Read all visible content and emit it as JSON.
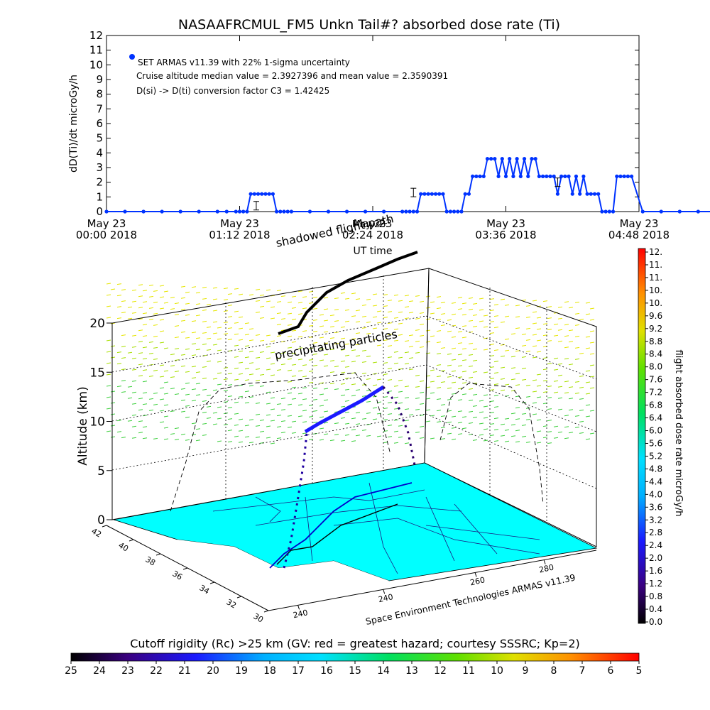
{
  "colors": {
    "dose_marker": "#0033ff",
    "map_fill": "#00ffff",
    "ground_track": "#0000cc",
    "flight_path_3d": "#000000",
    "dashed_curtain": "#000000",
    "background": "#ffffff"
  },
  "chart_data": [
    {
      "type": "scatter",
      "title": "NASAAFRCMUL_FM5 Unkn Tail#? absorbed dose rate (Ti)",
      "xlabel": "UT time",
      "ylabel": "dD(Ti)/dt microGy/h",
      "ylim": [
        0,
        12
      ],
      "yticks": [
        0,
        1,
        2,
        3,
        4,
        5,
        6,
        7,
        8,
        9,
        10,
        11,
        12
      ],
      "xlim": [
        "00:00",
        "04:48"
      ],
      "xtick_labels": [
        {
          "top": "May 23",
          "bottom": "00:00 2018"
        },
        {
          "top": "May 23",
          "bottom": "01:12 2018"
        },
        {
          "top": "May 23",
          "bottom": "02:24 2018"
        },
        {
          "top": "May 23",
          "bottom": "03:36 2018"
        },
        {
          "top": "May 23",
          "bottom": "04:48 2018"
        }
      ],
      "legend": {
        "placement": "top-left",
        "lines": [
          "SET ARMAS v11.39 with 22% 1-sigma uncertainty",
          "Cruise altitude median value = 2.3927396 and mean value = 2.3590391",
          "D(si) -> D(ti) conversion factor C3 = 1.42425"
        ]
      },
      "series": [
        {
          "x_minutes": [
            0,
            10,
            20,
            30,
            40,
            50,
            60,
            65,
            70,
            72,
            74,
            76,
            78,
            80,
            82,
            84,
            86,
            88,
            90,
            92,
            94,
            96,
            98,
            100,
            110,
            120,
            130,
            140,
            150,
            160,
            162,
            164,
            166,
            168,
            170,
            172,
            174,
            176,
            178,
            180,
            182,
            184,
            186,
            188,
            190,
            192,
            194,
            196,
            198,
            200,
            202,
            204,
            206,
            208,
            210,
            212,
            214,
            216,
            218,
            220,
            222,
            224,
            226,
            228,
            230,
            232,
            234,
            236,
            238,
            240,
            242,
            244,
            246,
            248,
            250,
            252,
            254,
            256,
            258,
            260,
            262,
            264,
            266,
            268,
            270,
            272,
            274,
            276,
            278,
            280,
            282,
            284,
            290,
            300,
            310,
            320,
            330
          ],
          "values": [
            0,
            0,
            0,
            0,
            0,
            0,
            0,
            0,
            0,
            0,
            0,
            0,
            1.2,
            1.2,
            1.2,
            1.2,
            1.2,
            1.2,
            1.2,
            0,
            0,
            0,
            0,
            0,
            0,
            0,
            0,
            0,
            0,
            0,
            0,
            0,
            0,
            0,
            1.2,
            1.2,
            1.2,
            1.2,
            1.2,
            1.2,
            1.2,
            0,
            0,
            0,
            0,
            0,
            1.2,
            1.2,
            2.4,
            2.4,
            2.4,
            2.4,
            3.6,
            3.6,
            3.6,
            2.4,
            3.6,
            2.4,
            3.6,
            2.4,
            3.6,
            2.4,
            3.6,
            2.4,
            3.6,
            3.6,
            2.4,
            2.4,
            2.4,
            2.4,
            2.4,
            1.2,
            2.4,
            2.4,
            2.4,
            1.2,
            2.4,
            1.2,
            2.4,
            1.2,
            1.2,
            1.2,
            1.2,
            0,
            0,
            0,
            0,
            2.4,
            2.4,
            2.4,
            2.4,
            2.4,
            0,
            0,
            0,
            0,
            0
          ]
        }
      ],
      "error_bars": [
        {
          "x_minutes": 81,
          "value": 0.4
        },
        {
          "x_minutes": 166,
          "value": 1.3
        },
        {
          "x_minutes": 244,
          "value": 2.0
        }
      ]
    },
    {
      "type": "scatter",
      "subtype": "3d-surface-trajectory",
      "ylabel": "Altitude (km)",
      "zlim": [
        0,
        20
      ],
      "zticks": [
        0,
        5,
        10,
        15,
        20
      ],
      "latitude_ticks": [
        42,
        40,
        38,
        36,
        34,
        32,
        30
      ],
      "longitude_ticks": [
        240,
        240,
        260,
        280
      ],
      "colorbar_label": "flight absorbed dose rate microGy/h",
      "colorbar_ticks": [
        "12.",
        "11.",
        "11.",
        "10.",
        "10.",
        "9.6",
        "9.2",
        "8.8",
        "8.4",
        "8.0",
        "7.6",
        "7.2",
        "6.8",
        "6.4",
        "6.0",
        "5.6",
        "5.2",
        "4.8",
        "4.4",
        "4.0",
        "3.6",
        "3.2",
        "2.8",
        "2.4",
        "2.0",
        "1.6",
        "1.2",
        "0.8",
        "0.4",
        "0.0"
      ],
      "annotations": [
        "shadowed flight path",
        "May 23",
        "UT time",
        "precipitating particles",
        "Space Environment Technologies ARMAS v11.39"
      ]
    },
    {
      "type": "heatmap",
      "subtype": "colorbar",
      "title": "Cutoff rigidity (Rc) >25 km (GV: red = greatest hazard; courtesy SSSRC; Kp=2)",
      "tick_labels": [
        "25",
        "24",
        "23",
        "22",
        "21",
        "20",
        "19",
        "18",
        "17",
        "16",
        "15",
        "14",
        "13",
        "12",
        "11",
        "10",
        "9",
        "8",
        "7",
        "6",
        "5"
      ]
    }
  ]
}
